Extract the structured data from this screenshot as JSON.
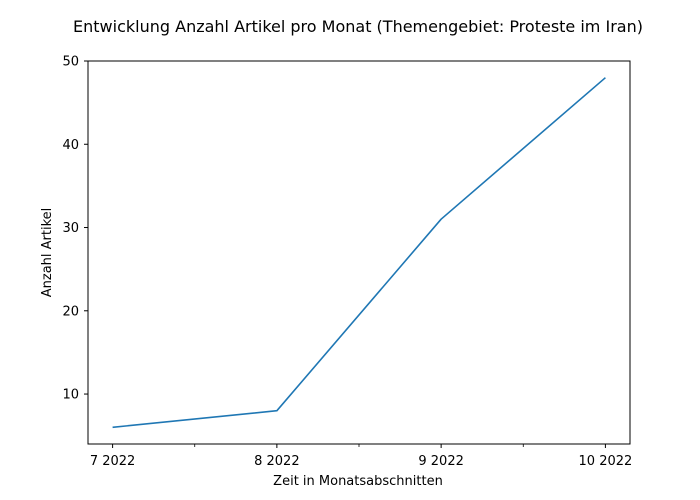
{
  "chart_data": {
    "type": "line",
    "title": "Entwicklung Anzahl Artikel pro Monat (Themengebiet: Proteste im Iran)",
    "xlabel": "Zeit in Monatsabschnitten",
    "ylabel": "Anzahl Artikel",
    "categories": [
      "7 2022",
      "8 2022",
      "9 2022",
      "10 2022"
    ],
    "series": [
      {
        "values": [
          6,
          8,
          31,
          48
        ],
        "color": "#1f77b4"
      }
    ],
    "ylim": [
      4,
      50
    ],
    "yticks": [
      10,
      20,
      30,
      40,
      50
    ],
    "grid": false,
    "legend": "none"
  }
}
